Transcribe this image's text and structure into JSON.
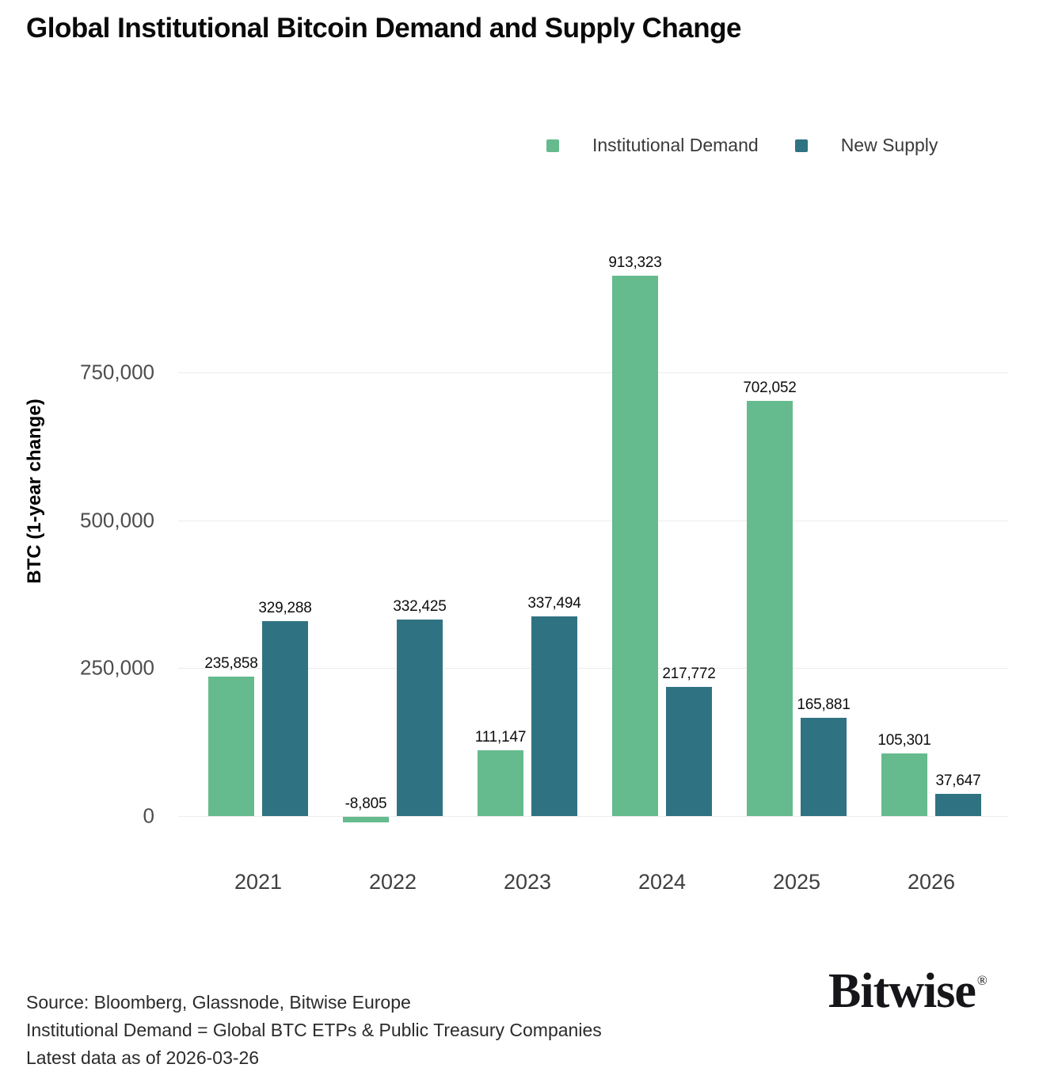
{
  "title": "Global Institutional Bitcoin Demand and Supply Change",
  "legend": {
    "items": [
      {
        "label": "Institutional Demand",
        "color": "#65BB8D"
      },
      {
        "label": "New Supply",
        "color": "#2F7383"
      }
    ]
  },
  "chart_data": {
    "type": "bar",
    "title": "Global Institutional Bitcoin Demand and Supply Change",
    "categories": [
      "2021",
      "2022",
      "2023",
      "2024",
      "2025",
      "2026"
    ],
    "series": [
      {
        "name": "Institutional Demand",
        "color": "#65BB8D",
        "values": [
          235858,
          -8805,
          111147,
          913323,
          702052,
          105301
        ],
        "labels": [
          "235,858",
          "-8,805",
          "111,147",
          "913,323",
          "702,052",
          "105,301"
        ]
      },
      {
        "name": "New Supply",
        "color": "#2F7383",
        "values": [
          329288,
          332425,
          337494,
          217772,
          165881,
          37647
        ],
        "labels": [
          "329,288",
          "332,425",
          "337,494",
          "217,772",
          "165,881",
          "37,647"
        ]
      }
    ],
    "xlabel": "",
    "ylabel": "BTC (1-year change)",
    "yticks": [
      0,
      250000,
      500000,
      750000
    ],
    "ytick_labels": [
      "0",
      "250,000",
      "500,000",
      "750,000"
    ],
    "ylim": [
      -25000,
      950000
    ],
    "grid": true,
    "legend_position": "top-right"
  },
  "footer": {
    "line1": "Source: Bloomberg, Glassnode, Bitwise Europe",
    "line2": "Institutional Demand = Global BTC ETPs & Public Treasury Companies",
    "line3": "Latest data as of 2026-03-26"
  },
  "logo": {
    "text": "Bitwise",
    "registered": "®"
  },
  "colors": {
    "demand": "#65BB8D",
    "supply": "#2F7383",
    "gridline": "#ECECEC",
    "tick_text": "#4D4D4D",
    "data_label": "#0D0D0D",
    "footer_text": "#2B2B2B"
  }
}
